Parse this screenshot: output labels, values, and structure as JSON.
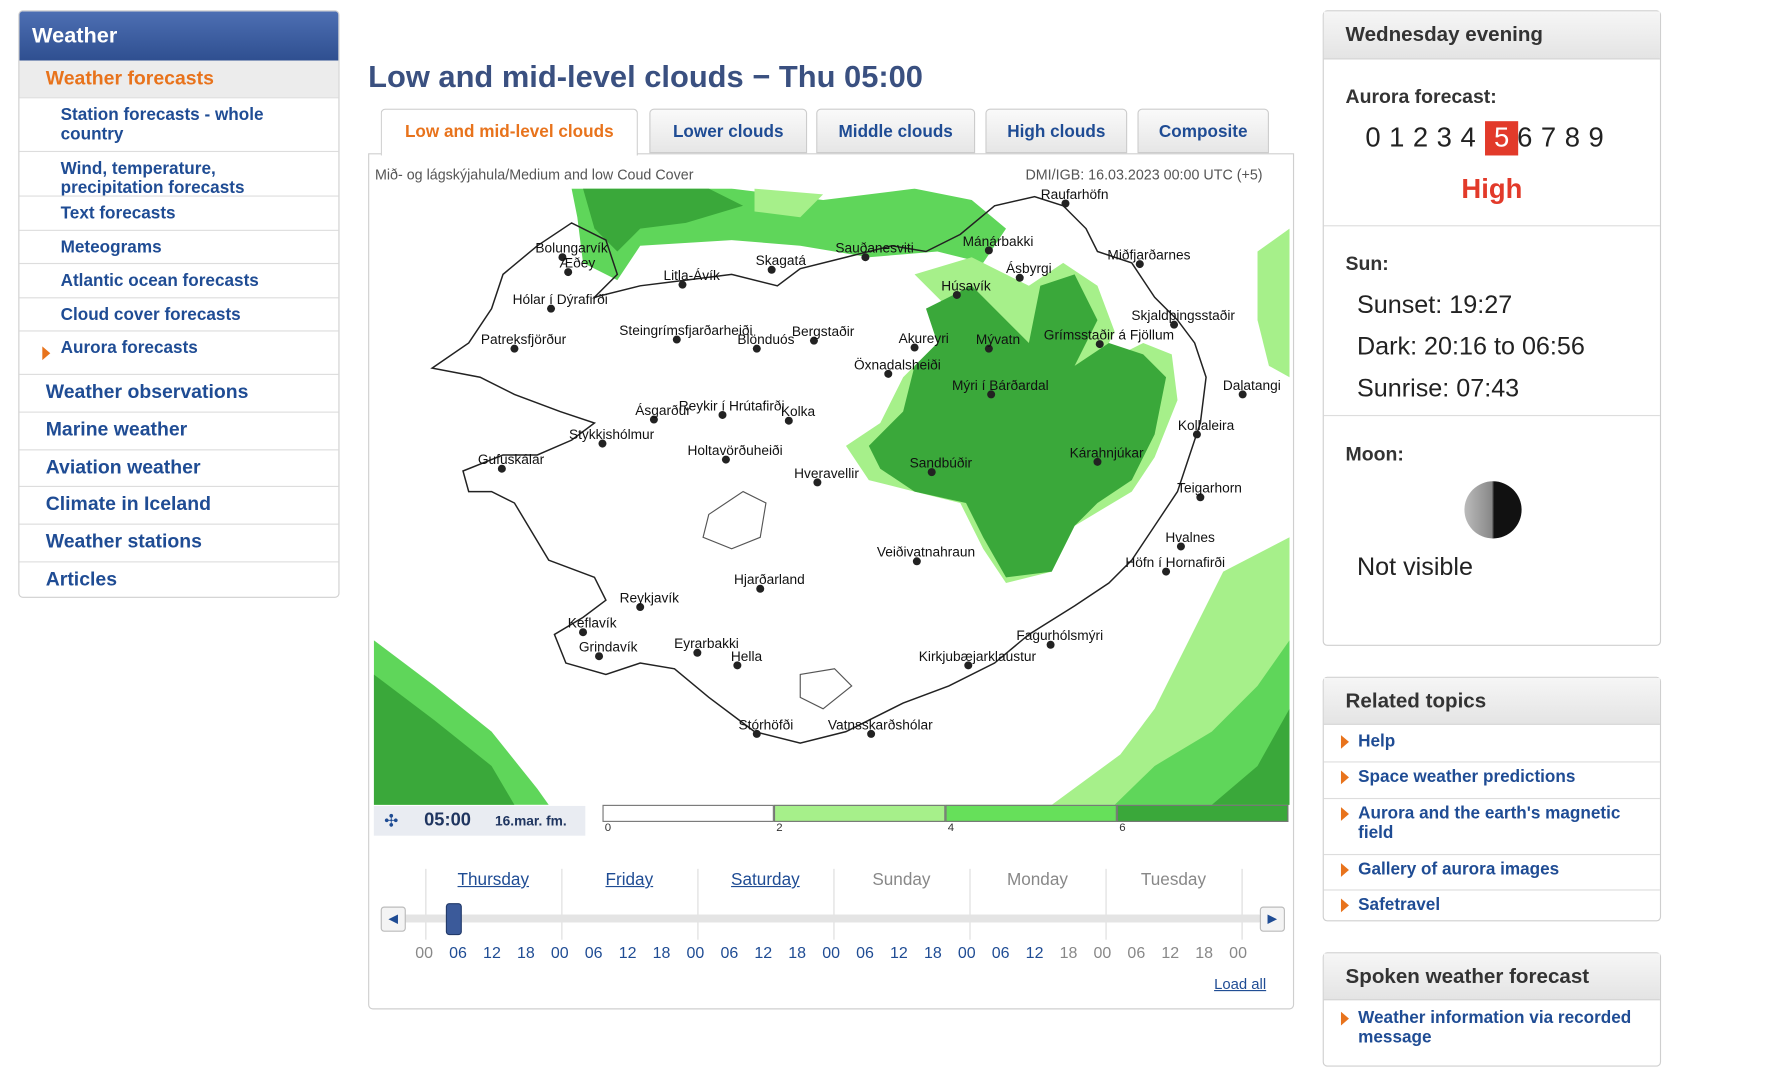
{
  "sidebar": {
    "title": "Weather",
    "current": "Weather forecasts",
    "subitems": [
      "Station forecasts - whole country",
      "Wind, temperature, precipitation forecasts",
      "Text forecasts",
      "Meteograms",
      "Atlantic ocean forecasts",
      "Cloud cover forecasts",
      "Aurora forecasts"
    ],
    "sections": [
      "Weather observations",
      "Marine weather",
      "Aviation weather",
      "Climate in Iceland",
      "Weather stations",
      "Articles"
    ]
  },
  "main": {
    "title": "Low and mid-level clouds − Thu 05:00",
    "tabs": [
      "Low and mid-level clouds",
      "Lower clouds",
      "Middle clouds",
      "High clouds",
      "Composite"
    ],
    "map_caption": "Mið- og lágskýjahula/Medium and low Coud Cover",
    "map_source": "DMI/IGB: 16.03.2023 00:00 UTC (+5)",
    "places": [
      "Raufarhöfn",
      "Bolungarvík",
      "Æðey",
      "Sauðanesviti",
      "Mánárbakki",
      "Miðfjarðarnes",
      "Skagatá",
      "Litla-Ávík",
      "Ásbyrgi",
      "Húsavík",
      "Hólar í Dýrafirði",
      "Skjaldþingsstaðir",
      "Steingrímsfjarðarheiði",
      "Blönduós",
      "Bergstaðir",
      "Akureyri",
      "Mývatn",
      "Grímsstaðir á Fjöllum",
      "Patreksfjörður",
      "Öxnadalsheiði",
      "Mýri í Bárðardal",
      "Dalatangi",
      "Ásgarður",
      "Reykir í Hrútafirði",
      "Kolka",
      "Kollaleira",
      "Stykkishólmur",
      "Holtavörðuheiði",
      "Kárahnjúkar",
      "Sandbúðir",
      "Gufuskálar",
      "Hveravellir",
      "Teigarhorn",
      "Hvalnes",
      "Veiðivatnahraun",
      "Höfn í Hornafirði",
      "Hjarðarland",
      "Reykjavík",
      "Keflavík",
      "Grindavík",
      "Eyrarbakki",
      "Hella",
      "Fagurhólsmýri",
      "Kirkjubæjarklaustur",
      "Stórhöfði",
      "Vatnsskarðshólar"
    ],
    "time": "05:00",
    "date": "16.mar. fm.",
    "legend": [
      "0",
      "2",
      "4",
      "6"
    ],
    "days": [
      "Thursday",
      "Friday",
      "Saturday",
      "Sunday",
      "Monday",
      "Tuesday"
    ],
    "hours": [
      "00",
      "06",
      "12",
      "18",
      "00",
      "06",
      "12",
      "18",
      "00",
      "06",
      "12",
      "18",
      "00",
      "06",
      "12",
      "18",
      "00",
      "06",
      "12",
      "18",
      "00",
      "06",
      "12",
      "18",
      "00"
    ],
    "load_all": "Load all"
  },
  "aurora": {
    "title": "Wednesday evening",
    "label": "Aurora forecast:",
    "scale": [
      "0",
      "1",
      "2",
      "3",
      "4",
      "5",
      "6",
      "7",
      "8",
      "9"
    ],
    "level": 5,
    "level_text": "High",
    "sun_label": "Sun:",
    "sunset": "Sunset: 19:27",
    "dark": "Dark: 20:16 to 06:56",
    "sunrise": "Sunrise: 07:43",
    "moon_label": "Moon:",
    "moon_text": "Not visible"
  },
  "related": {
    "title": "Related topics",
    "items": [
      "Help",
      "Space weather predictions",
      "Aurora and the earth's magnetic field",
      "Gallery of aurora images",
      "Safetravel"
    ]
  },
  "spoken": {
    "title": "Spoken weather forecast",
    "items": [
      "Weather information via recorded message"
    ]
  }
}
